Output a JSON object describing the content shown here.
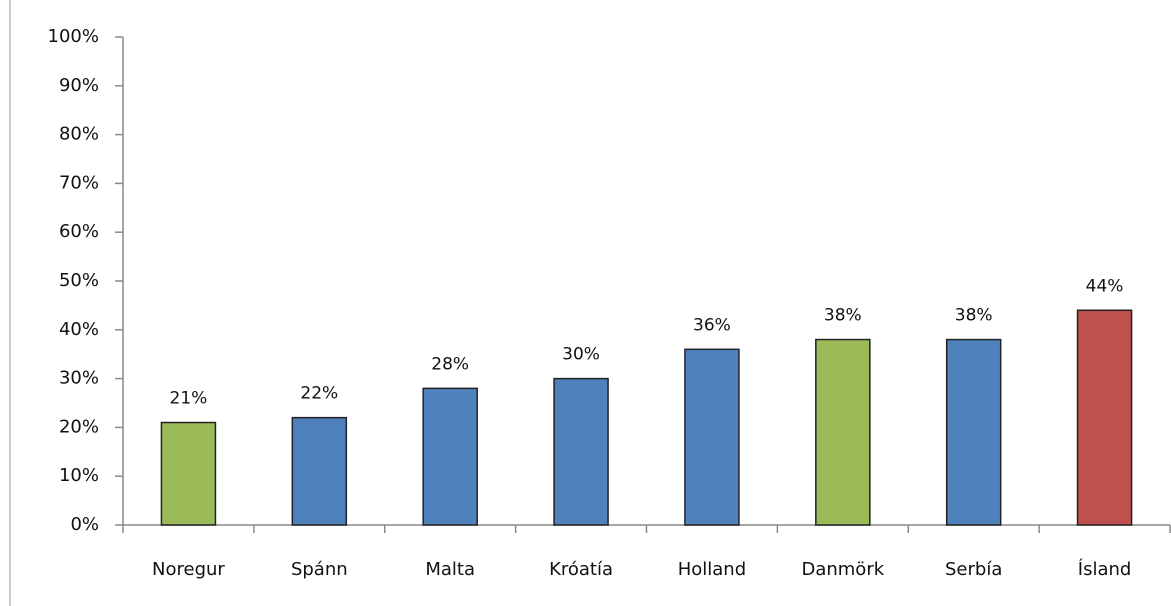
{
  "chart_data": {
    "type": "bar",
    "categories": [
      "Noregur",
      "Spánn",
      "Malta",
      "Króatía",
      "Holland",
      "Danmörk",
      "Serbía",
      "Ísland"
    ],
    "values": [
      21,
      22,
      28,
      30,
      36,
      38,
      38,
      44
    ],
    "value_labels": [
      "21%",
      "22%",
      "28%",
      "30%",
      "36%",
      "38%",
      "38%",
      "44%"
    ],
    "colors": [
      "#9bbb59",
      "#4f81bd",
      "#4f81bd",
      "#4f81bd",
      "#4f81bd",
      "#9bbb59",
      "#4f81bd",
      "#c0504d"
    ],
    "ylim": [
      0,
      100
    ],
    "yticks": [
      {
        "value": 0,
        "label": "0%"
      },
      {
        "value": 10,
        "label": "10%"
      },
      {
        "value": 20,
        "label": "20%"
      },
      {
        "value": 30,
        "label": "30%"
      },
      {
        "value": 40,
        "label": "40%"
      },
      {
        "value": 50,
        "label": "50%"
      },
      {
        "value": 60,
        "label": "60%"
      },
      {
        "value": 70,
        "label": "70%"
      },
      {
        "value": 80,
        "label": "80%"
      },
      {
        "value": 90,
        "label": "90%"
      },
      {
        "value": 100,
        "label": "100%"
      }
    ],
    "grid": false
  }
}
